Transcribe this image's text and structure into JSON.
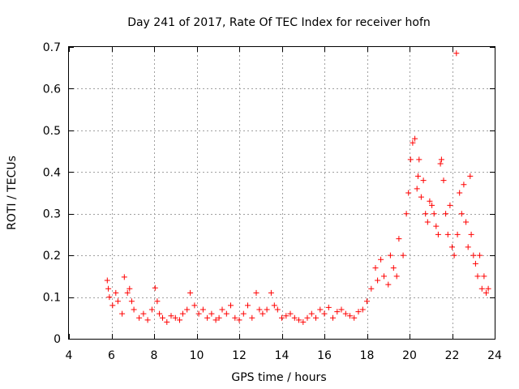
{
  "chart_data": {
    "type": "scatter",
    "title": "Day 241 of 2017, Rate Of TEC Index for receiver hofn",
    "xlabel": "GPS time / hours",
    "ylabel": "ROTI / TECUs",
    "xlim": [
      4,
      24
    ],
    "ylim": [
      0,
      0.7
    ],
    "xticks": [
      4,
      6,
      8,
      10,
      12,
      14,
      16,
      18,
      20,
      22,
      24
    ],
    "yticks": [
      0,
      0.1,
      0.2,
      0.3,
      0.4,
      0.5,
      0.6,
      0.7
    ],
    "xtick_labels": [
      "4",
      "6",
      "8",
      "10",
      "12",
      "14",
      "16",
      "18",
      "20",
      "22",
      "24"
    ],
    "ytick_labels": [
      "0",
      "0.1",
      "0.2",
      "0.3",
      "0.4",
      "0.5",
      "0.6",
      "0.7"
    ],
    "grid": true,
    "marker": "+",
    "color": "#ff0000",
    "series": [
      {
        "name": "ROTI",
        "x": [
          5.8,
          5.85,
          5.9,
          6.05,
          6.2,
          6.3,
          6.5,
          6.6,
          6.75,
          6.85,
          6.95,
          7.05,
          7.3,
          7.5,
          7.7,
          7.9,
          8.05,
          8.15,
          8.25,
          8.4,
          8.6,
          8.8,
          9.0,
          9.2,
          9.35,
          9.55,
          9.7,
          9.9,
          10.1,
          10.3,
          10.5,
          10.7,
          10.9,
          11.05,
          11.2,
          11.4,
          11.6,
          11.8,
          12.0,
          12.2,
          12.4,
          12.6,
          12.8,
          12.95,
          13.1,
          13.3,
          13.5,
          13.65,
          13.8,
          14.0,
          14.2,
          14.4,
          14.6,
          14.8,
          15.0,
          15.2,
          15.4,
          15.6,
          15.8,
          16.0,
          16.2,
          16.4,
          16.6,
          16.8,
          17.0,
          17.2,
          17.4,
          17.6,
          17.8,
          18.0,
          18.2,
          18.4,
          18.5,
          18.65,
          18.8,
          19.0,
          19.1,
          19.25,
          19.4,
          19.5,
          19.7,
          19.85,
          19.95,
          20.05,
          20.15,
          20.25,
          20.35,
          20.4,
          20.45,
          20.55,
          20.65,
          20.75,
          20.85,
          20.95,
          21.05,
          21.15,
          21.25,
          21.35,
          21.45,
          21.5,
          21.6,
          21.7,
          21.8,
          21.9,
          22.0,
          22.1,
          22.2,
          22.25,
          22.35,
          22.45,
          22.55,
          22.65,
          22.75,
          22.85,
          22.9,
          23.0,
          23.1,
          23.2,
          23.3,
          23.4,
          23.5,
          23.6,
          23.7
        ],
        "y": [
          0.14,
          0.12,
          0.1,
          0.08,
          0.11,
          0.09,
          0.06,
          0.148,
          0.11,
          0.12,
          0.09,
          0.07,
          0.05,
          0.06,
          0.045,
          0.07,
          0.122,
          0.09,
          0.06,
          0.05,
          0.04,
          0.055,
          0.05,
          0.045,
          0.06,
          0.07,
          0.11,
          0.08,
          0.06,
          0.07,
          0.05,
          0.06,
          0.045,
          0.05,
          0.07,
          0.06,
          0.08,
          0.05,
          0.045,
          0.06,
          0.08,
          0.05,
          0.11,
          0.07,
          0.06,
          0.07,
          0.11,
          0.08,
          0.07,
          0.05,
          0.055,
          0.06,
          0.05,
          0.045,
          0.04,
          0.05,
          0.06,
          0.05,
          0.07,
          0.06,
          0.075,
          0.05,
          0.065,
          0.07,
          0.06,
          0.055,
          0.05,
          0.065,
          0.07,
          0.09,
          0.12,
          0.17,
          0.14,
          0.19,
          0.15,
          0.13,
          0.2,
          0.17,
          0.15,
          0.24,
          0.2,
          0.3,
          0.35,
          0.43,
          0.47,
          0.48,
          0.36,
          0.39,
          0.43,
          0.34,
          0.38,
          0.3,
          0.28,
          0.33,
          0.32,
          0.3,
          0.27,
          0.25,
          0.42,
          0.43,
          0.38,
          0.3,
          0.25,
          0.32,
          0.22,
          0.2,
          0.685,
          0.25,
          0.35,
          0.3,
          0.37,
          0.28,
          0.22,
          0.39,
          0.25,
          0.2,
          0.18,
          0.15,
          0.2,
          0.12,
          0.15,
          0.11,
          0.12
        ]
      }
    ]
  }
}
